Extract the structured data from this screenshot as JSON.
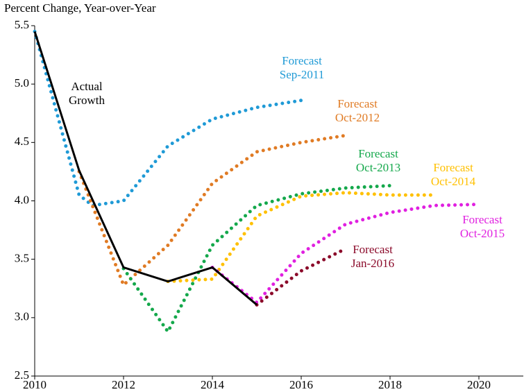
{
  "chart_data": {
    "type": "line",
    "ylabel": "Percent Change, Year-over-Year",
    "xlim": [
      2010,
      2021
    ],
    "xticks": [
      2010,
      2012,
      2014,
      2016,
      2018,
      2020
    ],
    "ylim": [
      2.5,
      5.5
    ],
    "yticks": [
      2.5,
      {
        "value": 3,
        "label": "3.0"
      },
      3.5,
      {
        "value": 4,
        "label": "4.0"
      },
      4.5,
      {
        "value": 5,
        "label": "5.0"
      },
      5.5
    ],
    "series": [
      {
        "name": "Forecast Sep-2011",
        "color": "#1f9ad6",
        "style": "dotted",
        "x": [
          2010,
          2011,
          2011.3,
          2012,
          2013,
          2014,
          2015,
          2016
        ],
        "values": [
          5.45,
          4.05,
          3.96,
          4.0,
          4.47,
          4.7,
          4.8,
          4.86
        ]
      },
      {
        "name": "Forecast Oct-2012",
        "color": "#e07b24",
        "style": "dotted",
        "x": [
          2011,
          2012,
          2013,
          2014,
          2015,
          2016,
          2017
        ],
        "values": [
          4.25,
          3.28,
          3.62,
          4.15,
          4.42,
          4.5,
          4.56
        ]
      },
      {
        "name": "Forecast Oct-2013",
        "color": "#14a84b",
        "style": "dotted",
        "x": [
          2012,
          2013,
          2014,
          2015,
          2016,
          2017,
          2018
        ],
        "values": [
          3.42,
          2.88,
          3.62,
          3.96,
          4.06,
          4.11,
          4.13
        ]
      },
      {
        "name": "Forecast Oct-2014",
        "color": "#ffc000",
        "style": "dotted",
        "x": [
          2013,
          2014,
          2015,
          2016,
          2017,
          2018,
          2019
        ],
        "values": [
          3.31,
          3.33,
          3.87,
          4.04,
          4.07,
          4.05,
          4.05
        ]
      },
      {
        "name": "Forecast Oct-2015",
        "color": "#e020e0",
        "style": "dotted",
        "x": [
          2014,
          2015,
          2016,
          2017,
          2018,
          2019,
          2020
        ],
        "values": [
          3.43,
          3.13,
          3.55,
          3.8,
          3.9,
          3.96,
          3.97
        ]
      },
      {
        "name": "Forecast Jan-2016",
        "color": "#8b0a2a",
        "style": "dotted",
        "x": [
          2015,
          2016,
          2017
        ],
        "values": [
          3.11,
          3.4,
          3.59
        ]
      },
      {
        "name": "Actual Growth",
        "color": "#000000",
        "style": "solid",
        "x": [
          2010,
          2011,
          2012,
          2013,
          2014,
          2015
        ],
        "values": [
          5.45,
          4.26,
          3.43,
          3.31,
          3.43,
          3.11
        ]
      }
    ]
  }
}
